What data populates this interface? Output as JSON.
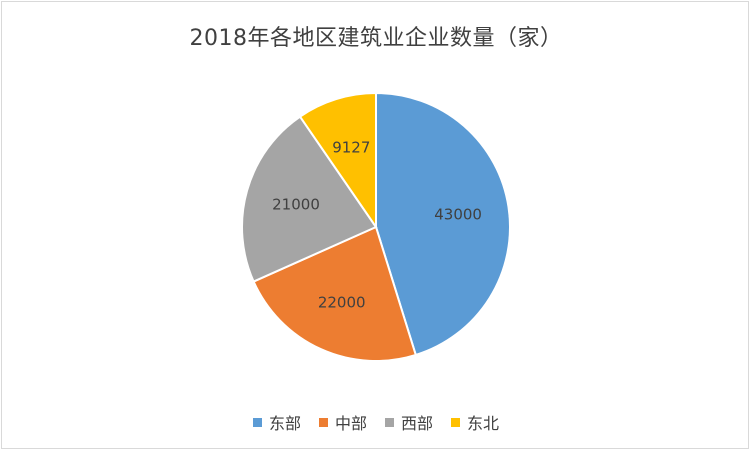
{
  "chart_data": {
    "type": "pie",
    "title": "2018年各地区建筑业企业数量（家）",
    "categories": [
      "东部",
      "中部",
      "西部",
      "东北"
    ],
    "values": [
      43000,
      22000,
      21000,
      9127
    ],
    "colors": [
      "#5b9bd5",
      "#ed7d31",
      "#a5a5a5",
      "#ffc000"
    ],
    "start_angle_deg": 0,
    "direction": "clockwise",
    "data_labels": true,
    "legend": "bottom"
  }
}
